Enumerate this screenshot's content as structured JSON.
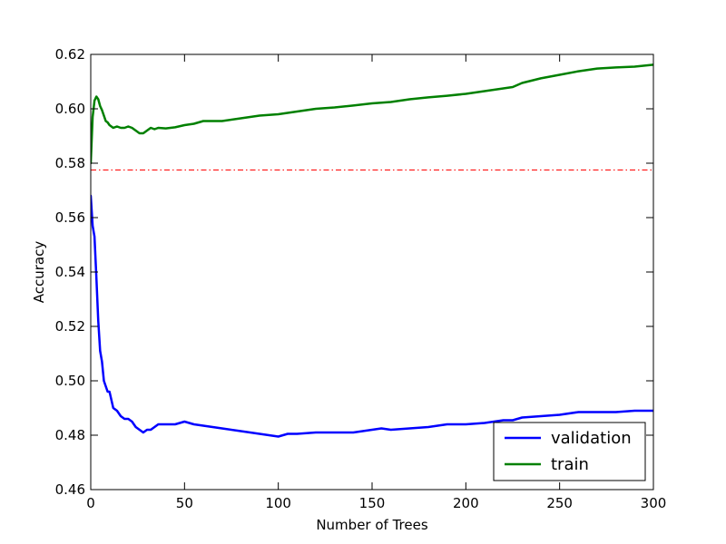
{
  "chart_data": {
    "type": "line",
    "title": "",
    "xlabel": "Number of Trees",
    "ylabel": "Accuracy",
    "xlim": [
      0,
      300
    ],
    "ylim": [
      0.46,
      0.62
    ],
    "x_ticks": [
      "0",
      "50",
      "100",
      "150",
      "200",
      "250",
      "300"
    ],
    "y_ticks": [
      "0.46",
      "0.48",
      "0.50",
      "0.52",
      "0.54",
      "0.56",
      "0.58",
      "0.60",
      "0.62"
    ],
    "grid": false,
    "legend_position": "lower-right",
    "reference_line": {
      "y": 0.5775,
      "color": "#ff0000",
      "style": "dash-dot"
    },
    "series": [
      {
        "name": "validation",
        "color": "#0000ff",
        "x": [
          0,
          1,
          2,
          3,
          4,
          5,
          6,
          7,
          8,
          9,
          10,
          12,
          14,
          16,
          18,
          20,
          22,
          24,
          26,
          28,
          30,
          32,
          34,
          36,
          40,
          45,
          50,
          55,
          60,
          70,
          80,
          90,
          100,
          105,
          110,
          120,
          130,
          140,
          150,
          155,
          160,
          170,
          180,
          190,
          200,
          210,
          220,
          225,
          230,
          240,
          250,
          260,
          270,
          280,
          290,
          300
        ],
        "values": [
          0.568,
          0.557,
          0.553,
          0.538,
          0.522,
          0.511,
          0.507,
          0.5,
          0.498,
          0.496,
          0.496,
          0.49,
          0.489,
          0.487,
          0.486,
          0.486,
          0.485,
          0.483,
          0.482,
          0.481,
          0.482,
          0.482,
          0.483,
          0.484,
          0.484,
          0.484,
          0.485,
          0.484,
          0.4835,
          0.4825,
          0.4815,
          0.4805,
          0.4795,
          0.4805,
          0.4805,
          0.481,
          0.481,
          0.481,
          0.482,
          0.4825,
          0.482,
          0.4825,
          0.483,
          0.484,
          0.484,
          0.4845,
          0.4855,
          0.4855,
          0.4865,
          0.487,
          0.4875,
          0.4885,
          0.4885,
          0.4885,
          0.489,
          0.489
        ]
      },
      {
        "name": "train",
        "color": "#008000",
        "x": [
          0,
          1,
          2,
          3,
          4,
          5,
          6,
          7,
          8,
          9,
          10,
          12,
          14,
          16,
          18,
          20,
          22,
          24,
          26,
          28,
          30,
          32,
          34,
          36,
          40,
          45,
          50,
          55,
          60,
          70,
          80,
          90,
          100,
          110,
          120,
          130,
          140,
          150,
          160,
          170,
          180,
          190,
          200,
          210,
          220,
          225,
          230,
          240,
          250,
          260,
          270,
          280,
          290,
          300
        ],
        "values": [
          0.58,
          0.597,
          0.603,
          0.6045,
          0.6035,
          0.601,
          0.5995,
          0.5975,
          0.5955,
          0.595,
          0.594,
          0.593,
          0.5935,
          0.593,
          0.593,
          0.5935,
          0.593,
          0.592,
          0.591,
          0.591,
          0.592,
          0.593,
          0.5925,
          0.593,
          0.5928,
          0.5932,
          0.594,
          0.5945,
          0.5955,
          0.5955,
          0.5965,
          0.5975,
          0.598,
          0.599,
          0.6,
          0.6005,
          0.6012,
          0.602,
          0.6025,
          0.6035,
          0.6042,
          0.6048,
          0.6055,
          0.6065,
          0.6075,
          0.608,
          0.6095,
          0.6112,
          0.6125,
          0.6138,
          0.6148,
          0.6152,
          0.6155,
          0.6162
        ]
      }
    ]
  }
}
